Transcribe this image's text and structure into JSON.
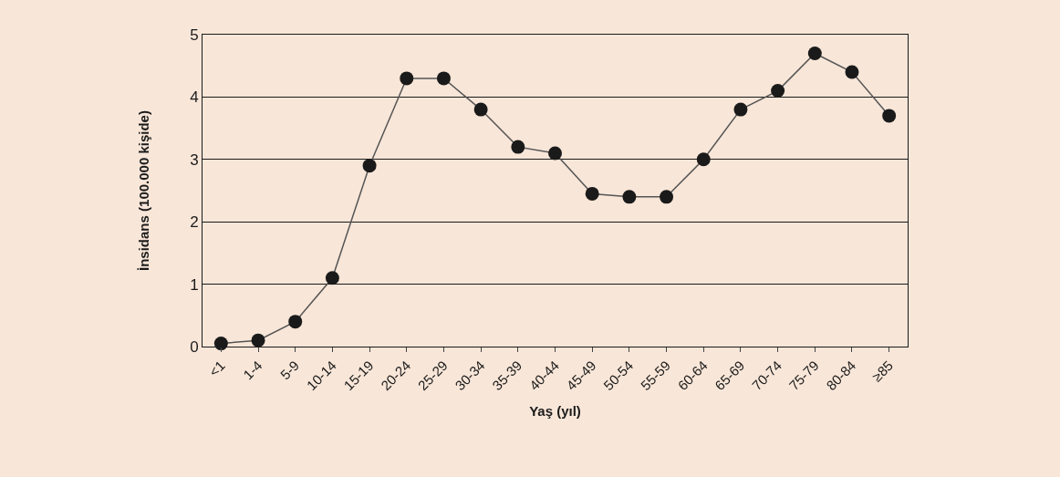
{
  "chart_data": {
    "type": "line",
    "xlabel": "Yaş (yıl)",
    "ylabel": "İnsidans (100.000 kişide)",
    "categories": [
      "<1",
      "1-4",
      "5-9",
      "10-14",
      "15-19",
      "20-24",
      "25-29",
      "30-34",
      "35-39",
      "40-44",
      "45-49",
      "50-54",
      "55-59",
      "60-64",
      "65-69",
      "70-74",
      "75-79",
      "80-84",
      "≥85"
    ],
    "series": [
      {
        "color": "#1a1a1a",
        "values": [
          0.05,
          0.1,
          0.4,
          1.1,
          2.9,
          4.3,
          4.3,
          3.8,
          3.2,
          3.1,
          2.45,
          2.4,
          2.4,
          3.0,
          3.8,
          4.1,
          4.7,
          4.4,
          3.7
        ]
      }
    ],
    "ylim": [
      0,
      5
    ],
    "yticks": [
      0,
      1,
      2,
      3,
      4,
      5
    ],
    "grid": "y",
    "marker": "circle",
    "line_style": "solid"
  }
}
